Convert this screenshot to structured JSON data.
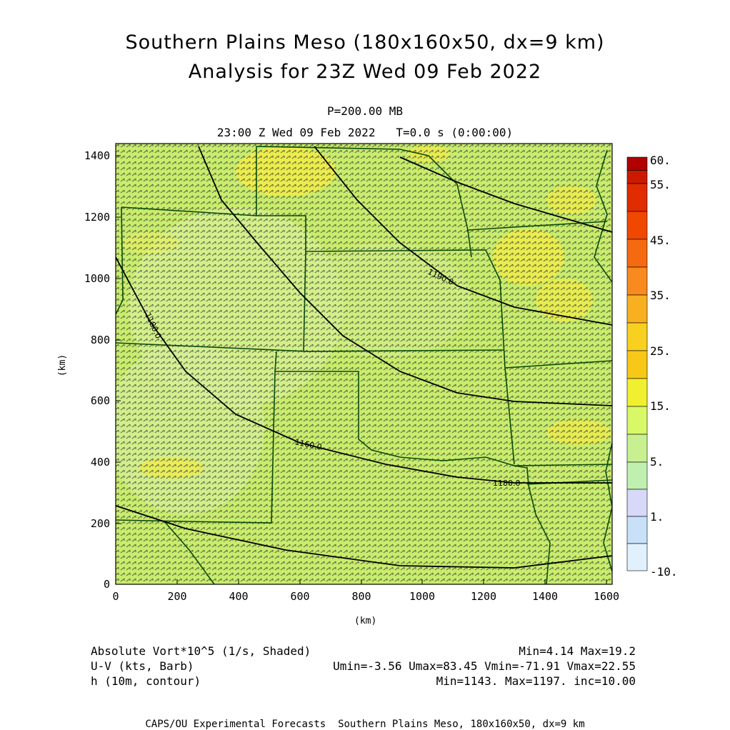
{
  "title_line1": "Southern Plains Meso (180x160x50, dx=9 km)",
  "title_line2": "Analysis for 23Z Wed 09 Feb 2022",
  "level": "P=200.00 MB",
  "time_line": "23:00 Z Wed 09 Feb 2022   T=0.0 s (0:00:00)",
  "axis": {
    "x_label": "(km)",
    "y_label": "(km)",
    "x_ticks": [
      "0",
      "200",
      "400",
      "600",
      "800",
      "1000",
      "1200",
      "1400",
      "1600"
    ],
    "y_ticks": [
      "1400",
      "1200",
      "1000",
      "800",
      "600",
      "400",
      "200",
      "0"
    ]
  },
  "colorbar": {
    "labels": [
      "60.",
      "55.",
      "45.",
      "35.",
      "25.",
      "15.",
      "5.",
      "1.",
      "-10."
    ],
    "colors": [
      "#b00000",
      "#cc1a00",
      "#e02c00",
      "#f04800",
      "#f56a10",
      "#f88a20",
      "#f8b020",
      "#f8d020",
      "#f0f030",
      "#d8f868",
      "#c0f0b0",
      "#d8d8f8",
      "#c8e0f8",
      "#e0f0fc"
    ]
  },
  "contours": {
    "labels": [
      "1190.0",
      "1180.0",
      "1160.0",
      "1180.0"
    ]
  },
  "legend": {
    "vort_label": "Absolute Vort*10^5 (1/s, Shaded)",
    "vort_stats": "Min=4.14 Max=19.2",
    "wind_label": "U-V (kts, Barb)",
    "wind_stats": "Umin=-3.56 Umax=83.45 Vmin=-71.91 Vmax=22.55",
    "height_label": "h (10m, contour)",
    "height_stats": "Min=1143. Max=1197. inc=10.00"
  },
  "footer": "CAPS/OU Experimental Forecasts  Southern Plains Meso, 180x160x50, dx=9 km",
  "field_colors": {
    "base": "#c8ec6c",
    "light": "#d8f090",
    "yellow": "#ecec48",
    "barb": "#303030",
    "border": "#0a4a0a",
    "contour": "#000000"
  }
}
